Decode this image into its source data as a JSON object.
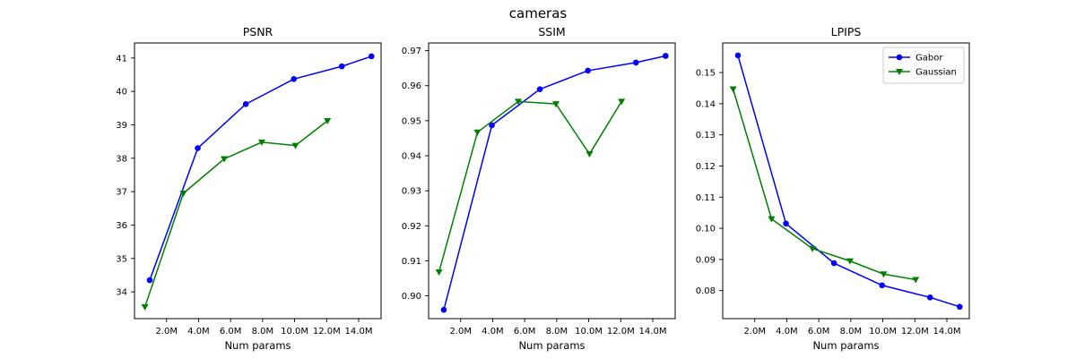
{
  "figure": {
    "title": "cameras"
  },
  "colors": {
    "gabor": "#0000ff",
    "gaussian": "#008000",
    "frame": "#000000"
  },
  "chart_data": [
    {
      "type": "line",
      "title": "PSNR",
      "xlabel": "Num params",
      "ylabel": "",
      "xlim": [
        0.0,
        15.4
      ],
      "ylim": [
        33.2,
        41.45
      ],
      "x_ticks": [
        2,
        4,
        6,
        8,
        10,
        12,
        14
      ],
      "x_tick_labels": [
        "2.0M",
        "4.0M",
        "6.0M",
        "8.0M",
        "10.0M",
        "12.0M",
        "14.0M"
      ],
      "y_ticks": [
        34,
        35,
        36,
        37,
        38,
        39,
        40,
        41
      ],
      "y_tick_labels": [
        "34",
        "35",
        "36",
        "37",
        "38",
        "39",
        "40",
        "41"
      ],
      "grid": false,
      "legend": null,
      "series": [
        {
          "name": "Gabor",
          "color": "#0000ff",
          "marker": "circle",
          "x": [
            0.95,
            3.95,
            6.95,
            9.95,
            12.95,
            14.8
          ],
          "y": [
            34.35,
            38.3,
            39.62,
            40.37,
            40.75,
            41.05
          ]
        },
        {
          "name": "Gaussian",
          "color": "#008000",
          "marker": "triangle-down",
          "x": [
            0.65,
            3.05,
            5.6,
            7.95,
            10.05,
            12.05
          ],
          "y": [
            33.55,
            36.95,
            37.98,
            38.48,
            38.38,
            39.12
          ]
        }
      ]
    },
    {
      "type": "line",
      "title": "SSIM",
      "xlabel": "Num params",
      "ylabel": "",
      "xlim": [
        0.0,
        15.4
      ],
      "ylim": [
        0.8935,
        0.9722
      ],
      "x_ticks": [
        2,
        4,
        6,
        8,
        10,
        12,
        14
      ],
      "x_tick_labels": [
        "2.0M",
        "4.0M",
        "6.0M",
        "8.0M",
        "10.0M",
        "12.0M",
        "14.0M"
      ],
      "y_ticks": [
        0.9,
        0.91,
        0.92,
        0.93,
        0.94,
        0.95,
        0.96,
        0.97
      ],
      "y_tick_labels": [
        "0.90",
        "0.91",
        "0.92",
        "0.93",
        "0.94",
        "0.95",
        "0.96",
        "0.97"
      ],
      "grid": false,
      "legend": null,
      "series": [
        {
          "name": "Gabor",
          "color": "#0000ff",
          "marker": "circle",
          "x": [
            0.95,
            3.95,
            6.95,
            9.95,
            12.95,
            14.8
          ],
          "y": [
            0.896,
            0.9487,
            0.959,
            0.9643,
            0.9666,
            0.9685
          ]
        },
        {
          "name": "Gaussian",
          "color": "#008000",
          "marker": "triangle-down",
          "x": [
            0.65,
            3.05,
            5.6,
            7.95,
            10.05,
            12.05
          ],
          "y": [
            0.9068,
            0.9467,
            0.9555,
            0.9548,
            0.9405,
            0.9555
          ]
        }
      ]
    },
    {
      "type": "line",
      "title": "LPIPS",
      "xlabel": "Num params",
      "ylabel": "",
      "xlim": [
        0.0,
        15.4
      ],
      "ylim": [
        0.071,
        0.1595
      ],
      "x_ticks": [
        2,
        4,
        6,
        8,
        10,
        12,
        14
      ],
      "x_tick_labels": [
        "2.0M",
        "4.0M",
        "6.0M",
        "8.0M",
        "10.0M",
        "12.0M",
        "14.0M"
      ],
      "y_ticks": [
        0.08,
        0.09,
        0.1,
        0.11,
        0.12,
        0.13,
        0.14,
        0.15
      ],
      "y_tick_labels": [
        "0.08",
        "0.09",
        "0.10",
        "0.11",
        "0.12",
        "0.13",
        "0.14",
        "0.15"
      ],
      "grid": false,
      "legend": {
        "placement": "top-right",
        "entries": [
          "Gabor",
          "Gaussian"
        ]
      },
      "series": [
        {
          "name": "Gabor",
          "color": "#0000ff",
          "marker": "circle",
          "x": [
            0.95,
            3.95,
            6.95,
            9.95,
            12.95,
            14.8
          ],
          "y": [
            0.1555,
            0.1015,
            0.0888,
            0.0817,
            0.0778,
            0.0748
          ]
        },
        {
          "name": "Gaussian",
          "color": "#008000",
          "marker": "triangle-down",
          "x": [
            0.65,
            3.05,
            5.6,
            7.95,
            10.05,
            12.05
          ],
          "y": [
            0.1447,
            0.103,
            0.0935,
            0.0895,
            0.0853,
            0.0835
          ]
        }
      ]
    }
  ]
}
